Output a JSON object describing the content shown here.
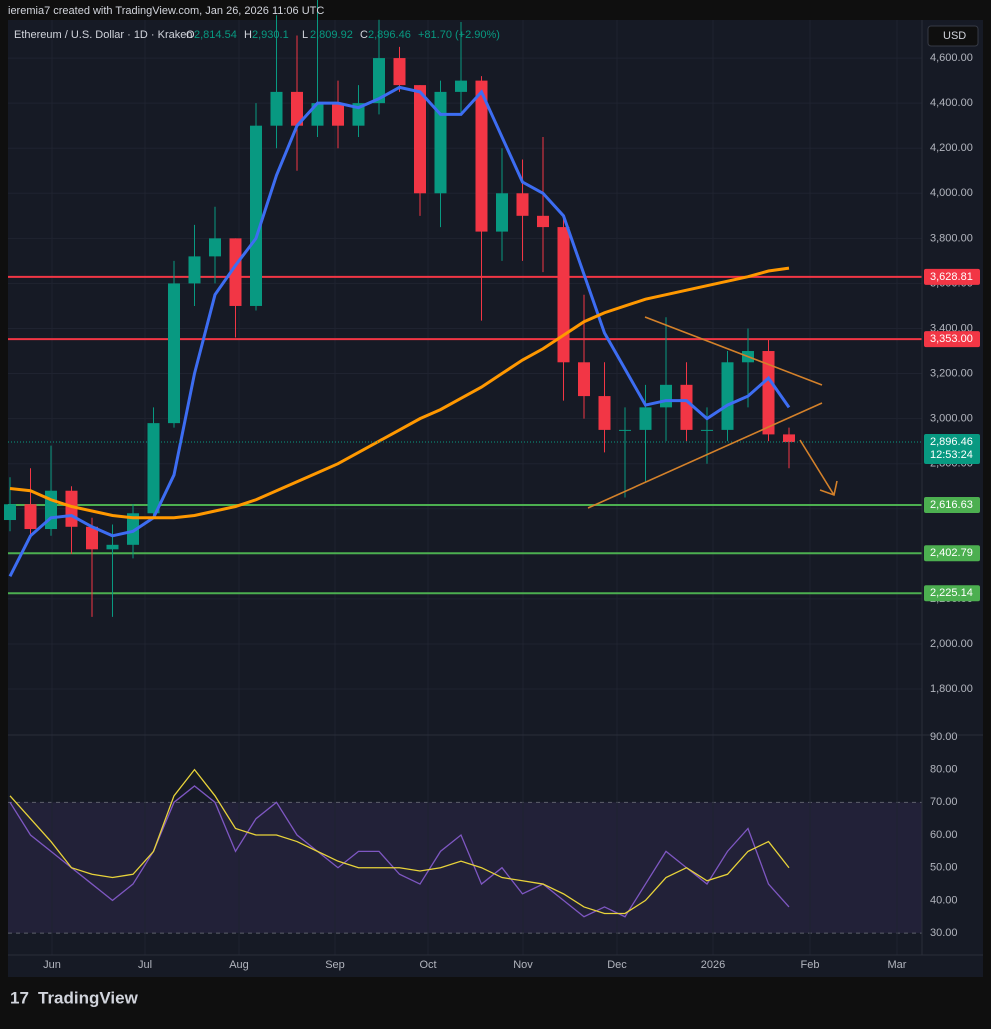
{
  "header": {
    "credit": "ieremia7 created with TradingView.com, Jan 26, 2026 11:06 UTC",
    "symbol": "Ethereum / U.S. Dollar · 1D · Kraken",
    "ohlc": [
      {
        "k": "O",
        "v": "2,814.54"
      },
      {
        "k": "H",
        "v": "2,930.1"
      },
      {
        "k": "L",
        "v": "2,809.92"
      },
      {
        "k": "C",
        "v": "2,896.46"
      }
    ],
    "change": "+81.70 (+2.90%)",
    "currency": "USD",
    "brand": "TradingView"
  },
  "chart_data": {
    "type": "candlestick",
    "months": [
      "Jun",
      "Jul",
      "Aug",
      "Sep",
      "Oct",
      "Nov",
      "Dec",
      "2026",
      "Feb",
      "Mar"
    ],
    "open": [
      2550,
      2620,
      2510,
      2680,
      2520,
      2420,
      2440,
      2580,
      2980,
      3600,
      3720,
      3800,
      3500,
      4300,
      4450,
      4300,
      4400,
      4300,
      4400,
      4600,
      4480,
      4000,
      4450,
      4500,
      3830,
      4000,
      3900,
      3850,
      3250,
      3100,
      2950,
      2950,
      3050,
      3150,
      2950,
      2950,
      3250,
      3300,
      2930
    ],
    "high": [
      2740,
      2780,
      2880,
      2700,
      2560,
      2530,
      2620,
      3050,
      3700,
      3860,
      3940,
      3800,
      4400,
      4790,
      4700,
      4950,
      4500,
      4480,
      4770,
      4650,
      4480,
      4500,
      4760,
      4520,
      4200,
      4150,
      4250,
      3900,
      3550,
      3250,
      3050,
      3150,
      3450,
      3250,
      3050,
      3300,
      3400,
      3350,
      2960
    ],
    "low": [
      2500,
      2480,
      2480,
      2400,
      2120,
      2120,
      2380,
      2560,
      2960,
      3500,
      3600,
      3360,
      3480,
      4200,
      4100,
      4250,
      4200,
      4250,
      4350,
      4450,
      3900,
      3850,
      4350,
      3435,
      3700,
      3700,
      3650,
      3080,
      3000,
      2850,
      2650,
      2720,
      2900,
      2900,
      2800,
      2900,
      3050,
      2900,
      2780
    ],
    "close": [
      2620,
      2510,
      2680,
      2520,
      2420,
      2440,
      2580,
      2980,
      3600,
      3720,
      3800,
      3500,
      4300,
      4450,
      4300,
      4400,
      4300,
      4400,
      4600,
      4480,
      4000,
      4450,
      4500,
      3830,
      4000,
      3900,
      3850,
      3250,
      3100,
      2950,
      2950,
      3050,
      3150,
      2950,
      2950,
      3250,
      3300,
      2930,
      2896
    ],
    "up_color": "#089981",
    "down_color": "#f23645",
    "overlays": [
      {
        "color": "#3d6df2",
        "values": [
          2300,
          2480,
          2560,
          2570,
          2520,
          2480,
          2500,
          2560,
          2750,
          3200,
          3550,
          3680,
          3800,
          4080,
          4300,
          4400,
          4400,
          4380,
          4420,
          4470,
          4450,
          4350,
          4350,
          4450,
          4250,
          4050,
          4000,
          3900,
          3640,
          3380,
          3220,
          3060,
          3080,
          3080,
          3000,
          3060,
          3100,
          3180,
          3050
        ]
      },
      {
        "color": "#ff9800",
        "values": [
          2690,
          2680,
          2640,
          2610,
          2590,
          2570,
          2560,
          2560,
          2560,
          2570,
          2590,
          2610,
          2640,
          2680,
          2720,
          2760,
          2800,
          2850,
          2900,
          2950,
          3000,
          3040,
          3090,
          3140,
          3200,
          3260,
          3310,
          3370,
          3430,
          3470,
          3500,
          3530,
          3550,
          3570,
          3590,
          3610,
          3630,
          3655,
          3668
        ]
      }
    ],
    "levels": [
      {
        "value": 3628.81,
        "label": "3,628.81",
        "color": "#f23645"
      },
      {
        "value": 3353,
        "label": "3,353.00",
        "color": "#f23645"
      },
      {
        "value": 2616.63,
        "label": "2,616.63",
        "color": "#4caf50"
      },
      {
        "value": 2402.79,
        "label": "2,402.79",
        "color": "#4caf50"
      },
      {
        "value": 2225.14,
        "label": "2,225.14",
        "color": "#4caf50"
      }
    ],
    "last": {
      "value": 2896.46,
      "label": "2,896.46",
      "countdown": "12:53:24",
      "color": "#089981"
    },
    "ylim": [
      1596,
      4769
    ],
    "yticks": [
      {
        "value": 1800,
        "label": "1,800.00"
      },
      {
        "value": 2000,
        "label": "2,000.00"
      },
      {
        "value": 2200,
        "label": "2,200.00"
      },
      {
        "value": 2400,
        "label": "2,400.00"
      },
      {
        "value": 2600,
        "label": "2,600.00"
      },
      {
        "value": 2800,
        "label": "2,800.00"
      },
      {
        "value": 3000,
        "label": "3,000.00"
      },
      {
        "value": 3200,
        "label": "3,200.00"
      },
      {
        "value": 3400,
        "label": "3,400.00"
      },
      {
        "value": 3600,
        "label": "3,600.00"
      },
      {
        "value": 3800,
        "label": "3,800.00"
      },
      {
        "value": 4000,
        "label": "4,000.00"
      },
      {
        "value": 4200,
        "label": "4,200.00"
      },
      {
        "value": 4400,
        "label": "4,400.00"
      },
      {
        "value": 4600,
        "label": "4,600.00"
      }
    ],
    "rsi": {
      "color": "#7e57c2",
      "ma_color": "#e8d33a",
      "band": [
        30,
        70
      ],
      "ylim": [
        23.3,
        90.6
      ],
      "yticks": [
        {
          "value": 30,
          "label": "30.00"
        },
        {
          "value": 40,
          "label": "40.00"
        },
        {
          "value": 50,
          "label": "50.00"
        },
        {
          "value": 60,
          "label": "60.00"
        },
        {
          "value": 70,
          "label": "70.00"
        },
        {
          "value": 80,
          "label": "80.00"
        },
        {
          "value": 90,
          "label": "90.00"
        }
      ],
      "values": [
        70,
        60,
        55,
        50,
        45,
        40,
        45,
        55,
        70,
        75,
        70,
        55,
        65,
        70,
        60,
        55,
        50,
        55,
        55,
        48,
        45,
        55,
        60,
        45,
        50,
        42,
        45,
        40,
        35,
        38,
        35,
        45,
        55,
        50,
        45,
        55,
        62,
        45,
        38
      ],
      "ma": [
        72,
        65,
        58,
        50,
        48,
        47,
        48,
        55,
        72,
        80,
        72,
        62,
        60,
        60,
        58,
        55,
        52,
        50,
        50,
        50,
        49,
        50,
        52,
        50,
        47,
        46,
        45,
        42,
        38,
        36,
        36,
        40,
        47,
        50,
        46,
        48,
        55,
        58,
        50
      ]
    }
  }
}
